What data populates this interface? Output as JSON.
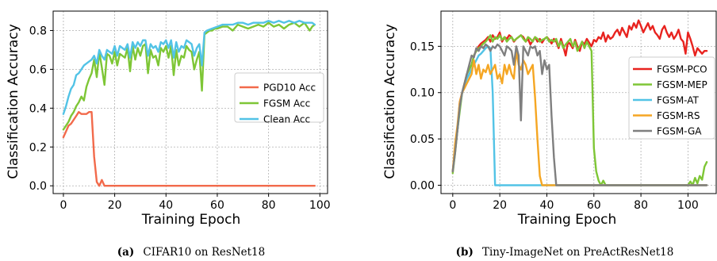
{
  "chart_data": [
    {
      "type": "line",
      "caption_letter": "(a)",
      "caption_text": "CIFAR10 on ResNet18",
      "xlabel": "Training Epoch",
      "ylabel": "Classification Accuracy",
      "xlim": [
        -4,
        103
      ],
      "ylim": [
        -0.04,
        0.9
      ],
      "xticks": [
        0,
        20,
        40,
        60,
        80,
        100
      ],
      "yticks": [
        0.0,
        0.2,
        0.4,
        0.6,
        0.8
      ],
      "ytick_labels": [
        "0.0",
        "0.2",
        "0.4",
        "0.6",
        "0.8"
      ],
      "grid": true,
      "legend_position": "center-right",
      "series": [
        {
          "name": "PGD10 Acc",
          "color": "#f26a4b",
          "x": [
            0,
            1,
            2,
            3,
            4,
            5,
            6,
            7,
            8,
            9,
            10,
            11,
            12,
            13,
            14,
            15,
            16,
            17,
            18,
            20,
            30,
            40,
            50,
            60,
            70,
            80,
            90,
            98
          ],
          "y": [
            0.25,
            0.28,
            0.31,
            0.32,
            0.34,
            0.36,
            0.38,
            0.37,
            0.37,
            0.37,
            0.38,
            0.38,
            0.15,
            0.02,
            0.0,
            0.03,
            0.0,
            0.0,
            0.0,
            0.0,
            0.0,
            0.0,
            0.0,
            0.0,
            0.0,
            0.0,
            0.0,
            0.0
          ]
        },
        {
          "name": "FGSM Acc",
          "color": "#7ec636",
          "x": [
            0,
            1,
            2,
            3,
            4,
            5,
            6,
            7,
            8,
            9,
            10,
            11,
            12,
            13,
            14,
            15,
            16,
            17,
            18,
            19,
            20,
            21,
            22,
            23,
            24,
            25,
            26,
            27,
            28,
            29,
            30,
            31,
            32,
            33,
            34,
            35,
            36,
            37,
            38,
            39,
            40,
            41,
            42,
            43,
            44,
            45,
            46,
            47,
            48,
            49,
            50,
            51,
            52,
            53,
            54,
            55,
            56,
            57,
            58,
            59,
            60,
            62,
            64,
            66,
            68,
            70,
            72,
            74,
            76,
            78,
            80,
            82,
            84,
            86,
            88,
            90,
            92,
            94,
            96,
            97,
            98
          ],
          "y": [
            0.29,
            0.31,
            0.33,
            0.36,
            0.38,
            0.41,
            0.43,
            0.46,
            0.44,
            0.51,
            0.55,
            0.58,
            0.65,
            0.56,
            0.69,
            0.61,
            0.52,
            0.68,
            0.67,
            0.63,
            0.69,
            0.62,
            0.68,
            0.67,
            0.66,
            0.71,
            0.59,
            0.72,
            0.65,
            0.71,
            0.67,
            0.72,
            0.73,
            0.58,
            0.7,
            0.66,
            0.67,
            0.62,
            0.71,
            0.69,
            0.72,
            0.66,
            0.72,
            0.57,
            0.7,
            0.62,
            0.67,
            0.66,
            0.72,
            0.7,
            0.69,
            0.6,
            0.65,
            0.69,
            0.49,
            0.78,
            0.79,
            0.8,
            0.8,
            0.81,
            0.81,
            0.82,
            0.82,
            0.8,
            0.83,
            0.82,
            0.81,
            0.82,
            0.83,
            0.82,
            0.84,
            0.82,
            0.83,
            0.81,
            0.83,
            0.84,
            0.82,
            0.84,
            0.8,
            0.82,
            0.83
          ]
        },
        {
          "name": "Clean Acc",
          "color": "#52c3e6",
          "x": [
            0,
            1,
            2,
            3,
            4,
            5,
            6,
            7,
            8,
            9,
            10,
            11,
            12,
            13,
            14,
            15,
            16,
            17,
            18,
            19,
            20,
            21,
            22,
            23,
            24,
            25,
            26,
            27,
            28,
            29,
            30,
            31,
            32,
            33,
            34,
            35,
            36,
            37,
            38,
            39,
            40,
            41,
            42,
            43,
            44,
            45,
            46,
            47,
            48,
            49,
            50,
            51,
            52,
            53,
            54,
            55,
            56,
            58,
            60,
            62,
            64,
            66,
            68,
            70,
            72,
            74,
            76,
            78,
            80,
            82,
            84,
            86,
            88,
            90,
            92,
            94,
            96,
            97,
            98
          ],
          "y": [
            0.37,
            0.41,
            0.46,
            0.5,
            0.52,
            0.57,
            0.58,
            0.6,
            0.62,
            0.63,
            0.64,
            0.65,
            0.67,
            0.63,
            0.7,
            0.67,
            0.65,
            0.7,
            0.69,
            0.68,
            0.72,
            0.67,
            0.72,
            0.71,
            0.7,
            0.73,
            0.66,
            0.74,
            0.71,
            0.74,
            0.72,
            0.75,
            0.75,
            0.67,
            0.73,
            0.71,
            0.72,
            0.69,
            0.74,
            0.73,
            0.75,
            0.71,
            0.75,
            0.66,
            0.74,
            0.69,
            0.72,
            0.71,
            0.75,
            0.74,
            0.73,
            0.67,
            0.71,
            0.73,
            0.62,
            0.79,
            0.8,
            0.81,
            0.82,
            0.83,
            0.83,
            0.83,
            0.84,
            0.84,
            0.83,
            0.84,
            0.84,
            0.84,
            0.85,
            0.84,
            0.85,
            0.84,
            0.85,
            0.84,
            0.85,
            0.84,
            0.84,
            0.84,
            0.83
          ]
        }
      ]
    },
    {
      "type": "line",
      "caption_letter": "(b)",
      "caption_text": "Tiny-ImageNet on PreActResNet18",
      "xlabel": "Training Epoch",
      "ylabel": "Classification Accuracy",
      "xlim": [
        -5,
        112
      ],
      "ylim": [
        -0.009,
        0.188
      ],
      "xticks": [
        0,
        20,
        40,
        60,
        80,
        100
      ],
      "yticks": [
        0.0,
        0.05,
        0.1,
        0.15
      ],
      "ytick_labels": [
        "0.00",
        "0.05",
        "0.10",
        "0.15"
      ],
      "grid": true,
      "legend_position": "right",
      "series": [
        {
          "name": "FGSM-PCO",
          "color": "#e8231f",
          "x": [
            0,
            1,
            2,
            3,
            4,
            5,
            6,
            7,
            8,
            9,
            10,
            11,
            12,
            13,
            14,
            15,
            16,
            17,
            18,
            19,
            20,
            21,
            22,
            23,
            24,
            25,
            26,
            27,
            28,
            29,
            30,
            31,
            32,
            33,
            34,
            35,
            36,
            37,
            38,
            39,
            40,
            41,
            42,
            43,
            44,
            45,
            46,
            47,
            48,
            49,
            50,
            51,
            52,
            53,
            54,
            55,
            56,
            57,
            58,
            59,
            60,
            61,
            62,
            63,
            64,
            65,
            66,
            67,
            68,
            69,
            70,
            71,
            72,
            73,
            74,
            75,
            76,
            77,
            78,
            79,
            80,
            81,
            82,
            83,
            84,
            85,
            86,
            87,
            88,
            89,
            90,
            91,
            92,
            93,
            94,
            95,
            96,
            97,
            98,
            99,
            100,
            101,
            102,
            103,
            104,
            105,
            106,
            107,
            108
          ],
          "y": [
            0.015,
            0.04,
            0.06,
            0.09,
            0.1,
            0.11,
            0.12,
            0.125,
            0.13,
            0.14,
            0.145,
            0.15,
            0.153,
            0.155,
            0.157,
            0.16,
            0.155,
            0.162,
            0.158,
            0.16,
            0.165,
            0.155,
            0.16,
            0.158,
            0.162,
            0.16,
            0.155,
            0.158,
            0.16,
            0.162,
            0.16,
            0.155,
            0.158,
            0.152,
            0.156,
            0.16,
            0.155,
            0.158,
            0.154,
            0.158,
            0.16,
            0.157,
            0.153,
            0.158,
            0.155,
            0.148,
            0.158,
            0.15,
            0.14,
            0.155,
            0.152,
            0.148,
            0.157,
            0.15,
            0.145,
            0.155,
            0.152,
            0.158,
            0.154,
            0.15,
            0.157,
            0.155,
            0.16,
            0.158,
            0.165,
            0.155,
            0.162,
            0.158,
            0.16,
            0.165,
            0.168,
            0.162,
            0.17,
            0.165,
            0.16,
            0.172,
            0.168,
            0.175,
            0.17,
            0.178,
            0.172,
            0.165,
            0.17,
            0.175,
            0.168,
            0.172,
            0.165,
            0.162,
            0.158,
            0.168,
            0.172,
            0.165,
            0.16,
            0.165,
            0.158,
            0.162,
            0.168,
            0.158,
            0.155,
            0.142,
            0.165,
            0.158,
            0.15,
            0.14,
            0.148,
            0.145,
            0.142,
            0.145,
            0.145
          ]
        },
        {
          "name": "FGSM-MEP",
          "color": "#7ec636",
          "x": [
            0,
            1,
            2,
            3,
            4,
            5,
            6,
            7,
            8,
            9,
            10,
            11,
            12,
            13,
            14,
            15,
            16,
            17,
            18,
            19,
            20,
            21,
            22,
            23,
            24,
            25,
            26,
            27,
            28,
            29,
            30,
            31,
            32,
            33,
            34,
            35,
            36,
            37,
            38,
            39,
            40,
            41,
            42,
            43,
            44,
            45,
            46,
            47,
            48,
            49,
            50,
            51,
            52,
            53,
            54,
            55,
            56,
            57,
            58,
            59,
            60,
            61,
            62,
            63,
            64,
            65,
            70,
            75,
            80,
            85,
            90,
            95,
            100,
            101,
            102,
            103,
            104,
            105,
            106,
            107,
            108
          ],
          "y": [
            0.013,
            0.035,
            0.06,
            0.08,
            0.1,
            0.11,
            0.12,
            0.125,
            0.13,
            0.14,
            0.145,
            0.148,
            0.15,
            0.153,
            0.155,
            0.158,
            0.162,
            0.155,
            0.16,
            0.158,
            0.162,
            0.157,
            0.16,
            0.155,
            0.158,
            0.16,
            0.156,
            0.158,
            0.16,
            0.162,
            0.158,
            0.155,
            0.16,
            0.158,
            0.155,
            0.16,
            0.158,
            0.155,
            0.157,
            0.158,
            0.16,
            0.155,
            0.157,
            0.155,
            0.158,
            0.15,
            0.155,
            0.148,
            0.152,
            0.155,
            0.158,
            0.15,
            0.155,
            0.145,
            0.15,
            0.155,
            0.148,
            0.155,
            0.15,
            0.145,
            0.04,
            0.015,
            0.005,
            0.0,
            0.005,
            0.0,
            0.0,
            0.0,
            0.0,
            0.0,
            0.0,
            0.0,
            0.0,
            0.004,
            0.0,
            0.008,
            0.002,
            0.01,
            0.006,
            0.02,
            0.025
          ]
        },
        {
          "name": "FGSM-AT",
          "color": "#52c3e6",
          "x": [
            0,
            1,
            2,
            3,
            4,
            5,
            6,
            7,
            8,
            9,
            10,
            11,
            12,
            13,
            14,
            15,
            16,
            17,
            18,
            20,
            40,
            60,
            80,
            100,
            108
          ],
          "y": [
            0.015,
            0.04,
            0.06,
            0.085,
            0.1,
            0.108,
            0.115,
            0.12,
            0.125,
            0.13,
            0.135,
            0.14,
            0.142,
            0.145,
            0.148,
            0.15,
            0.148,
            0.1,
            0.0,
            0.0,
            0.0,
            0.0,
            0.0,
            0.0,
            0.0
          ]
        },
        {
          "name": "FGSM-RS",
          "color": "#f5a623",
          "x": [
            0,
            1,
            2,
            3,
            4,
            5,
            6,
            7,
            8,
            9,
            10,
            11,
            12,
            13,
            14,
            15,
            16,
            17,
            18,
            19,
            20,
            21,
            22,
            23,
            24,
            25,
            26,
            27,
            28,
            29,
            30,
            31,
            32,
            33,
            34,
            35,
            36,
            37,
            38,
            40,
            60,
            80,
            100,
            108
          ],
          "y": [
            0.015,
            0.045,
            0.065,
            0.09,
            0.1,
            0.105,
            0.11,
            0.115,
            0.12,
            0.135,
            0.12,
            0.13,
            0.115,
            0.125,
            0.122,
            0.13,
            0.12,
            0.125,
            0.13,
            0.115,
            0.12,
            0.11,
            0.13,
            0.12,
            0.13,
            0.12,
            0.115,
            0.145,
            0.13,
            0.125,
            0.135,
            0.13,
            0.12,
            0.125,
            0.13,
            0.095,
            0.05,
            0.01,
            0.0,
            0.0,
            0.0,
            0.0,
            0.0,
            0.0
          ]
        },
        {
          "name": "FGSM-GA",
          "color": "#7f7f7f",
          "x": [
            0,
            1,
            2,
            3,
            4,
            5,
            6,
            7,
            8,
            9,
            10,
            11,
            12,
            13,
            14,
            15,
            16,
            17,
            18,
            19,
            20,
            21,
            22,
            23,
            24,
            25,
            26,
            27,
            28,
            29,
            30,
            31,
            32,
            33,
            34,
            35,
            36,
            37,
            38,
            39,
            40,
            41,
            42,
            43,
            44,
            46,
            60,
            80,
            100,
            108
          ],
          "y": [
            0.015,
            0.035,
            0.06,
            0.085,
            0.1,
            0.11,
            0.12,
            0.13,
            0.14,
            0.138,
            0.148,
            0.145,
            0.15,
            0.148,
            0.152,
            0.15,
            0.145,
            0.15,
            0.148,
            0.152,
            0.15,
            0.145,
            0.14,
            0.15,
            0.148,
            0.145,
            0.13,
            0.15,
            0.14,
            0.07,
            0.15,
            0.145,
            0.14,
            0.15,
            0.148,
            0.15,
            0.14,
            0.145,
            0.12,
            0.135,
            0.125,
            0.13,
            0.075,
            0.03,
            0.0,
            0.0,
            0.0,
            0.0,
            0.0,
            0.0
          ]
        }
      ]
    }
  ]
}
